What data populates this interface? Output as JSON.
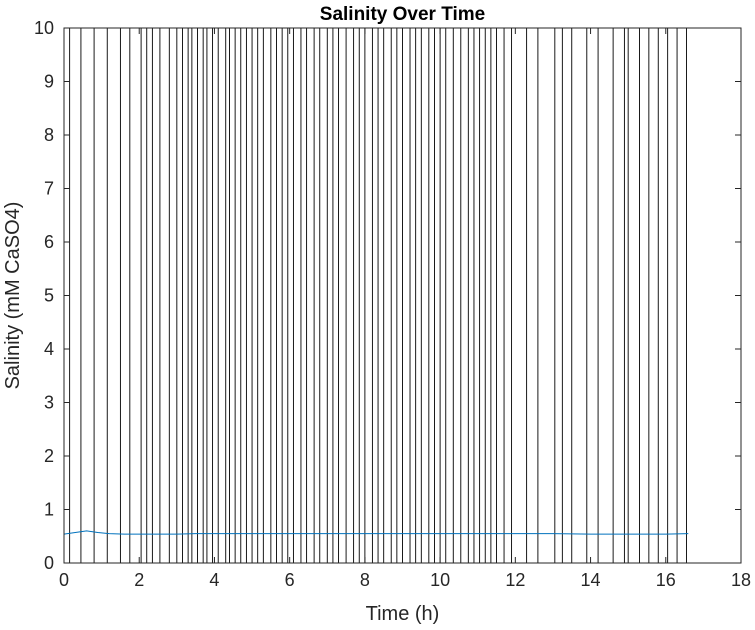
{
  "chart_data": {
    "type": "line",
    "title": "Salinity Over Time",
    "xlabel": "Time (h)",
    "ylabel": "Salinity (mM CaSO4)",
    "xlim": [
      0,
      18
    ],
    "ylim": [
      0,
      10
    ],
    "xticks": [
      "0",
      "2",
      "4",
      "6",
      "8",
      "10",
      "12",
      "14",
      "16",
      "18"
    ],
    "yticks": [
      "0",
      "1",
      "2",
      "3",
      "4",
      "5",
      "6",
      "7",
      "8",
      "9",
      "10"
    ],
    "grid": false,
    "series": [
      {
        "color": "#0072bd",
        "x": [
          0,
          0.3,
          0.6,
          0.9,
          1.2,
          1.6,
          2.0,
          2.5,
          3.0,
          3.5,
          4.0,
          5.0,
          6.0,
          7.0,
          8.0,
          9.0,
          10.0,
          11.0,
          12.0,
          13.0,
          14.0,
          15.0,
          16.0,
          16.6
        ],
        "y": [
          0.54,
          0.57,
          0.6,
          0.57,
          0.55,
          0.54,
          0.54,
          0.54,
          0.54,
          0.55,
          0.55,
          0.55,
          0.55,
          0.55,
          0.55,
          0.55,
          0.55,
          0.55,
          0.55,
          0.55,
          0.54,
          0.54,
          0.54,
          0.55
        ]
      }
    ],
    "vlines": {
      "color": "#000000",
      "x": [
        0.15,
        0.45,
        0.8,
        1.15,
        1.5,
        1.75,
        2.05,
        2.2,
        2.35,
        2.55,
        2.8,
        3.0,
        3.15,
        3.3,
        3.4,
        3.55,
        3.7,
        3.8,
        3.95,
        4.1,
        4.3,
        4.4,
        4.55,
        4.7,
        4.85,
        5.0,
        5.15,
        5.3,
        5.5,
        5.65,
        5.8,
        5.95,
        6.1,
        6.3,
        6.45,
        6.65,
        6.8,
        7.0,
        7.15,
        7.3,
        7.5,
        7.7,
        7.85,
        8.0,
        8.2,
        8.35,
        8.5,
        8.7,
        8.85,
        9.0,
        9.2,
        9.35,
        9.5,
        9.7,
        9.85,
        10.0,
        10.15,
        10.35,
        10.55,
        10.75,
        10.9,
        11.05,
        11.2,
        11.35,
        11.5,
        11.7,
        11.9,
        12.3,
        12.6,
        13.05,
        13.25,
        13.5,
        13.9,
        14.2,
        14.6,
        14.9,
        15.0,
        15.3,
        15.55,
        15.8,
        16.05,
        16.3,
        16.55
      ]
    }
  }
}
